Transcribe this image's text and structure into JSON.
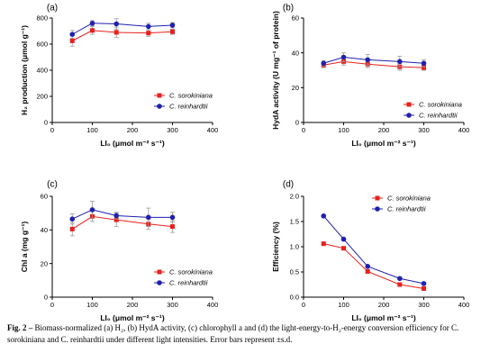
{
  "colors": {
    "sorokiniana": "#e8201c",
    "reinhardtii": "#2020b0",
    "axis": "#000000"
  },
  "caption": {
    "label": "Fig. 2 –",
    "text": "Biomass-normalized (a) H₂, (b) HydA activity, (c) chlorophyll a and (d) the light-energy-to-H₂-energy conversion efficiency for C. sorokiniana and C. reinhardtii under different light intensities. Error bars represent ±s.d."
  },
  "chart_data": [
    {
      "panel": "(a)",
      "type": "line",
      "xlabel": "LI₀ (μmol m⁻² s⁻¹)",
      "ylabel": "H₂ production (μmol g⁻¹)",
      "xlim": [
        0,
        400
      ],
      "ylim": [
        0,
        800
      ],
      "xticks": [
        0,
        100,
        200,
        300,
        400
      ],
      "yticks": [
        0,
        200,
        400,
        600,
        800
      ],
      "legend_position": "bottom-right",
      "x": [
        50,
        100,
        160,
        240,
        300
      ],
      "series": [
        {
          "name": "C. sorokiniana",
          "key": "sorokiniana",
          "marker": "square",
          "values": [
            625,
            705,
            690,
            685,
            695
          ],
          "errors": [
            40,
            30,
            40,
            25,
            20
          ]
        },
        {
          "name": "C. reinhardtii",
          "key": "reinhardtii",
          "marker": "circle",
          "values": [
            675,
            760,
            755,
            735,
            745
          ],
          "errors": [
            30,
            20,
            40,
            25,
            20
          ]
        }
      ]
    },
    {
      "panel": "(b)",
      "type": "line",
      "xlabel": "LI₀ (μmol m⁻² s⁻¹)",
      "ylabel": "HydA activity (U mg⁻¹ of protein)",
      "xlim": [
        0,
        400
      ],
      "ylim": [
        0,
        60
      ],
      "xticks": [
        0,
        100,
        200,
        300,
        400
      ],
      "yticks": [
        0,
        20,
        40,
        60
      ],
      "legend_position": "bottom-right",
      "x": [
        50,
        100,
        160,
        240,
        300
      ],
      "series": [
        {
          "name": "C. sorokiniana",
          "key": "sorokiniana",
          "marker": "square",
          "values": [
            33,
            35,
            33.5,
            32,
            31.5
          ],
          "errors": [
            1.5,
            2,
            2,
            2,
            1.5
          ]
        },
        {
          "name": "C. reinhardtii",
          "key": "reinhardtii",
          "marker": "circle",
          "values": [
            34,
            37.5,
            36,
            35,
            34
          ],
          "errors": [
            1.5,
            2.5,
            3,
            3,
            2
          ]
        }
      ]
    },
    {
      "panel": "(c)",
      "type": "line",
      "xlabel": "LI₀ (μmol m⁻² s⁻¹)",
      "ylabel": "Chl a (mg g⁻¹)",
      "xlim": [
        0,
        400
      ],
      "ylim": [
        0,
        60
      ],
      "xticks": [
        0,
        100,
        200,
        300,
        400
      ],
      "yticks": [
        0,
        20,
        40,
        60
      ],
      "legend_position": "bottom-right",
      "x": [
        50,
        100,
        160,
        240,
        300
      ],
      "series": [
        {
          "name": "C. sorokiniana",
          "key": "sorokiniana",
          "marker": "square",
          "values": [
            40.5,
            48,
            46,
            43.5,
            42
          ],
          "errors": [
            4,
            3,
            4,
            3,
            3.5
          ]
        },
        {
          "name": "C. reinhardtii",
          "key": "reinhardtii",
          "marker": "circle",
          "values": [
            46.5,
            52,
            48.5,
            47.5,
            47.5
          ],
          "errors": [
            3,
            5,
            2,
            5.5,
            3
          ]
        }
      ]
    },
    {
      "panel": "(d)",
      "type": "line",
      "xlabel": "LI₀ (μmol m⁻² s⁻¹)",
      "ylabel": "Efficiency (%)",
      "xlim": [
        0,
        400
      ],
      "ylim": [
        0,
        2.0
      ],
      "xticks": [
        0,
        100,
        200,
        300,
        400
      ],
      "yticks": [
        0.0,
        0.5,
        1.0,
        1.5,
        2.0
      ],
      "ytick_labels": [
        "0.0",
        "0.5",
        "1.0",
        "1.5",
        "2.0"
      ],
      "legend_position": "top-right",
      "x": [
        50,
        100,
        160,
        240,
        300
      ],
      "series": [
        {
          "name": "C. sorokiniana",
          "key": "sorokiniana",
          "marker": "square",
          "values": [
            1.06,
            0.97,
            0.51,
            0.25,
            0.17
          ],
          "errors": [
            0.02,
            0.02,
            0.02,
            0.02,
            0.02
          ]
        },
        {
          "name": "C. reinhardtii",
          "key": "reinhardtii",
          "marker": "circle",
          "values": [
            1.61,
            1.15,
            0.61,
            0.37,
            0.27
          ],
          "errors": [
            0.03,
            0.02,
            0.02,
            0.02,
            0.02
          ]
        }
      ]
    }
  ]
}
